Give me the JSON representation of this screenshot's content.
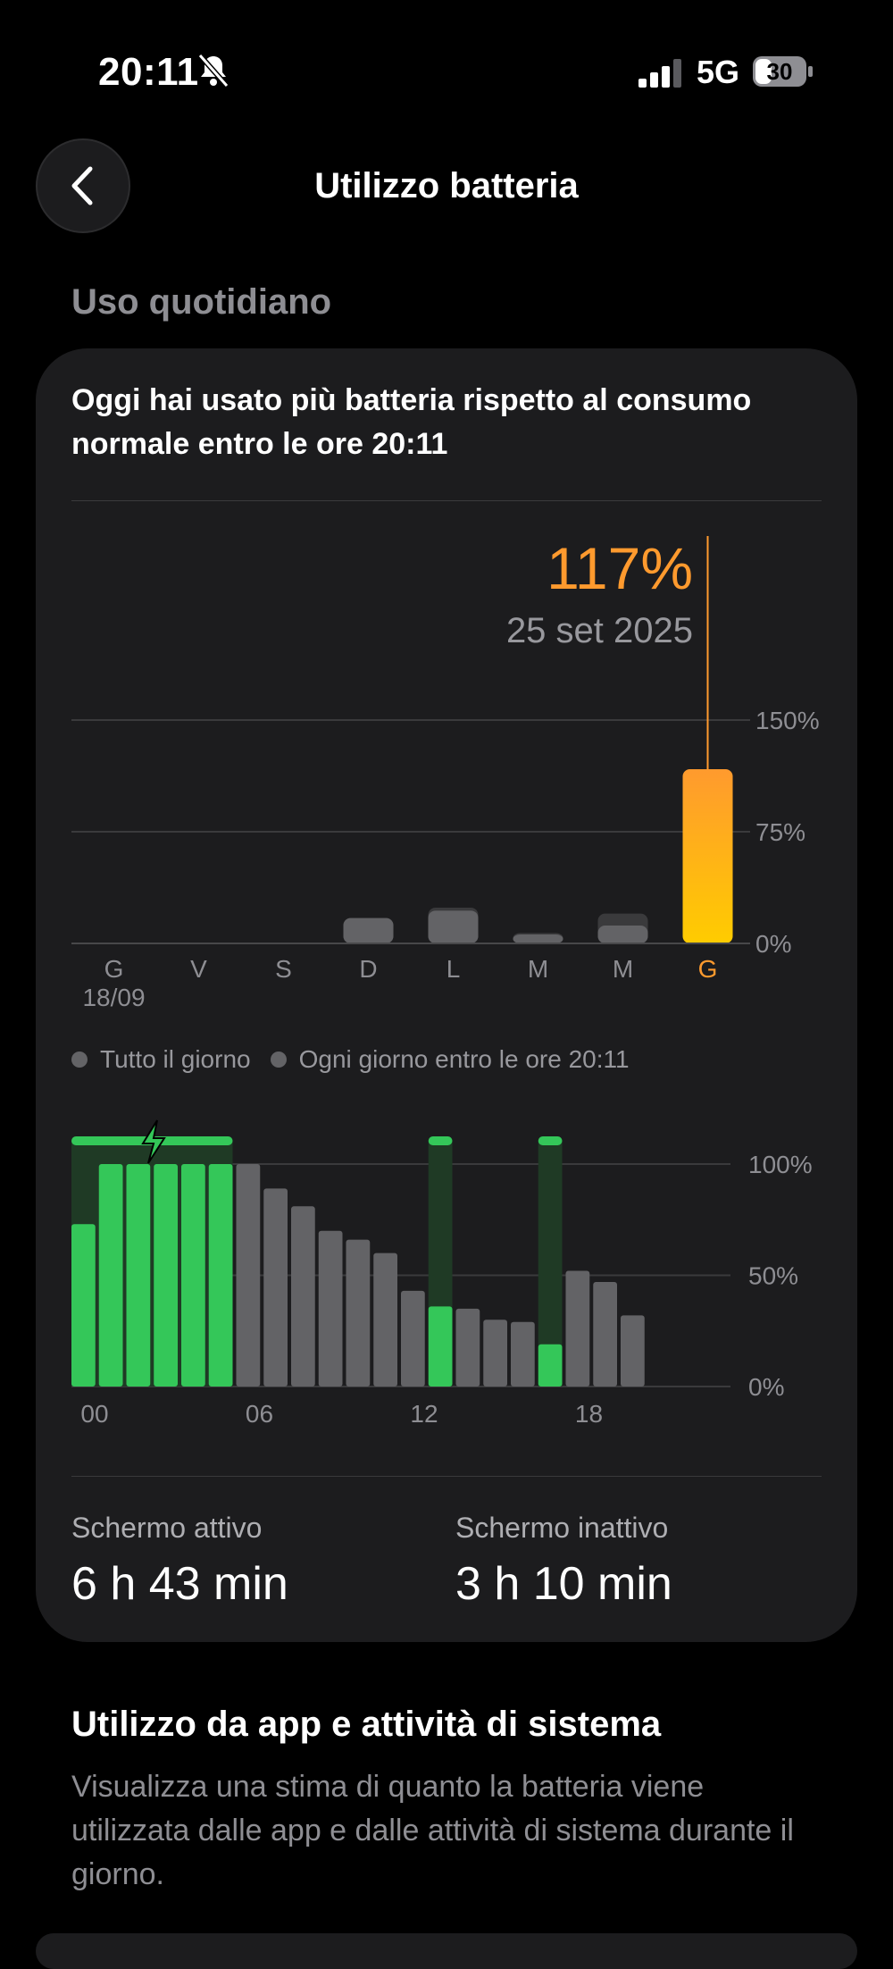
{
  "status_bar": {
    "time": "20:11",
    "network": "5G",
    "battery_level": "30",
    "icons": [
      "bell-slash-icon",
      "signal-icon",
      "battery-icon"
    ]
  },
  "nav": {
    "title": "Utilizzo batteria",
    "back_icon": "chevron-left-icon"
  },
  "daily_section": {
    "header": "Uso quotidiano",
    "headline": "Oggi hai usato più batteria rispetto al consumo normale entro le ore 20:11",
    "selected": {
      "value": "117%",
      "date": "25 set 2025"
    },
    "legend": [
      "Tutto il giorno",
      "Ogni giorno entro le ore 20:11"
    ]
  },
  "chart_data": [
    {
      "type": "bar",
      "categories": [
        "G",
        "V",
        "S",
        "D",
        "L",
        "M",
        "M",
        "G"
      ],
      "first_date_label": "18/09",
      "y_ticks": [
        "150%",
        "75%",
        "0%"
      ],
      "ylim": [
        0,
        150
      ],
      "series": [
        {
          "name": "Tutto il giorno",
          "values": [
            0,
            0,
            0,
            17,
            24,
            7,
            20,
            117
          ]
        },
        {
          "name": "Ogni giorno entro le ore 20:11",
          "values": [
            0,
            0,
            0,
            17,
            22,
            6,
            12,
            117
          ]
        }
      ],
      "selected_index": 7,
      "colors": {
        "normal": "#636366",
        "selected_top": "#ff9a2e",
        "selected_bottom": "#ffcc00",
        "highlight_label": "#ff9a2e"
      }
    },
    {
      "type": "bar",
      "x_tick_labels": [
        "00",
        "06",
        "12",
        "18"
      ],
      "y_ticks": [
        "100%",
        "50%",
        "0%"
      ],
      "ylim": [
        0,
        100
      ],
      "hourly_levels": [
        73,
        100,
        100,
        100,
        100,
        100,
        100,
        89,
        81,
        70,
        66,
        60,
        43,
        36,
        35,
        30,
        29,
        19,
        52,
        47,
        32
      ],
      "charging_hours": [
        0,
        1,
        2,
        3,
        4,
        5,
        13,
        17
      ],
      "charging_indicator_icon": "lightning-bolt-icon",
      "colors": {
        "charging": "#34c759",
        "normal": "#636366"
      }
    }
  ],
  "screen_stats": {
    "active_label": "Schermo attivo",
    "active_value": "6 h 43 min",
    "inactive_label": "Schermo inattivo",
    "inactive_value": "3 h 10 min"
  },
  "apps_section": {
    "title": "Utilizzo da app e attività di sistema",
    "description": "Visualizza una stima di quanto la batteria viene utilizzata dalle app e dalle attività di sistema durante il giorno."
  }
}
